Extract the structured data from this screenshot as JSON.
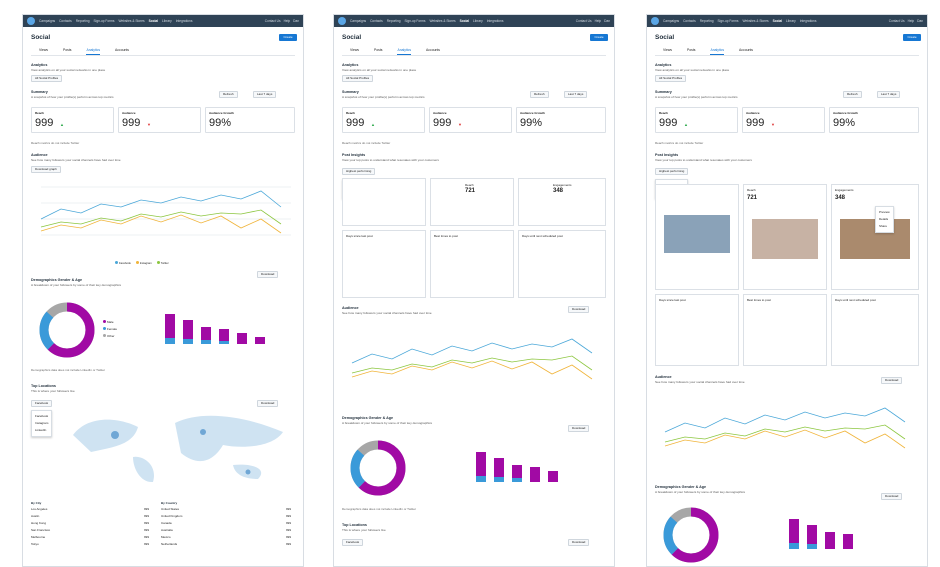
{
  "nav": {
    "items": [
      "Campaigns",
      "Contacts",
      "Reporting",
      "Sign-up Forms",
      "Websites & Stores",
      "Social",
      "Library",
      "Integrations"
    ],
    "right": [
      "Contact Us",
      "Help",
      "Dan"
    ]
  },
  "page": {
    "title": "Social",
    "create": "Create",
    "tabs": [
      "Views",
      "Posts",
      "Analytics",
      "Accounts"
    ],
    "analytics": "Analytics",
    "analytics_sub": "View analytics on all your social networks in one place",
    "profiles": "All Social Profiles",
    "summary": "Summary",
    "summary_sub": "A snapshot of how your profile(s) perform across top metrics",
    "refresh": "Refresh",
    "range": "Last 7 days",
    "reach": "Reach",
    "audience": "Audience",
    "growth": "Audience Growth",
    "reach_val": "999",
    "aud_val": "999",
    "growth_val": "99%",
    "note": "Reach metrics do not include Twitter",
    "aud_title": "Audience",
    "aud_sub": "See how many followers your social channels have had over time",
    "download_graph": "Download graph",
    "download": "Download",
    "demo_title": "Demographics Gender & Age",
    "demo_sub": "A breakdown of your followers by some of their key demographics",
    "male": "Male",
    "female": "Female",
    "other": "Other",
    "demo_note": "Demographics data does not include LinkedIn or Twitter",
    "top_loc": "Top Locations",
    "top_sub": "This is where your followers live",
    "fb": "Facebook",
    "ig": "Instagram",
    "li": "LinkedIn",
    "tw": "Twitter",
    "by_city": "By City",
    "by_country": "By Country",
    "post_title": "Post Insights",
    "post_sub": "View your top posts to understand what resonates with your customers",
    "highest": "Highest performing",
    "lowest": "Lowest performing",
    "reach2": "Reach",
    "eng": "Engagements",
    "eng_val": "348",
    "reach_post": "721",
    "days_since": "Days since last post",
    "best_times": "Best times to post",
    "days_until": "Days until next scheduled post",
    "preview": "Preview",
    "details": "Details",
    "share": "Share"
  },
  "cities": [
    "Los Angeles",
    "Austin",
    "Hong Kong",
    "San Francisco",
    "Melbourne",
    "Tokyo"
  ],
  "countries": [
    "United States",
    "United Kingdom",
    "Canada",
    "Australia",
    "Mexico",
    "Netherlands"
  ],
  "chart_values": "999"
}
